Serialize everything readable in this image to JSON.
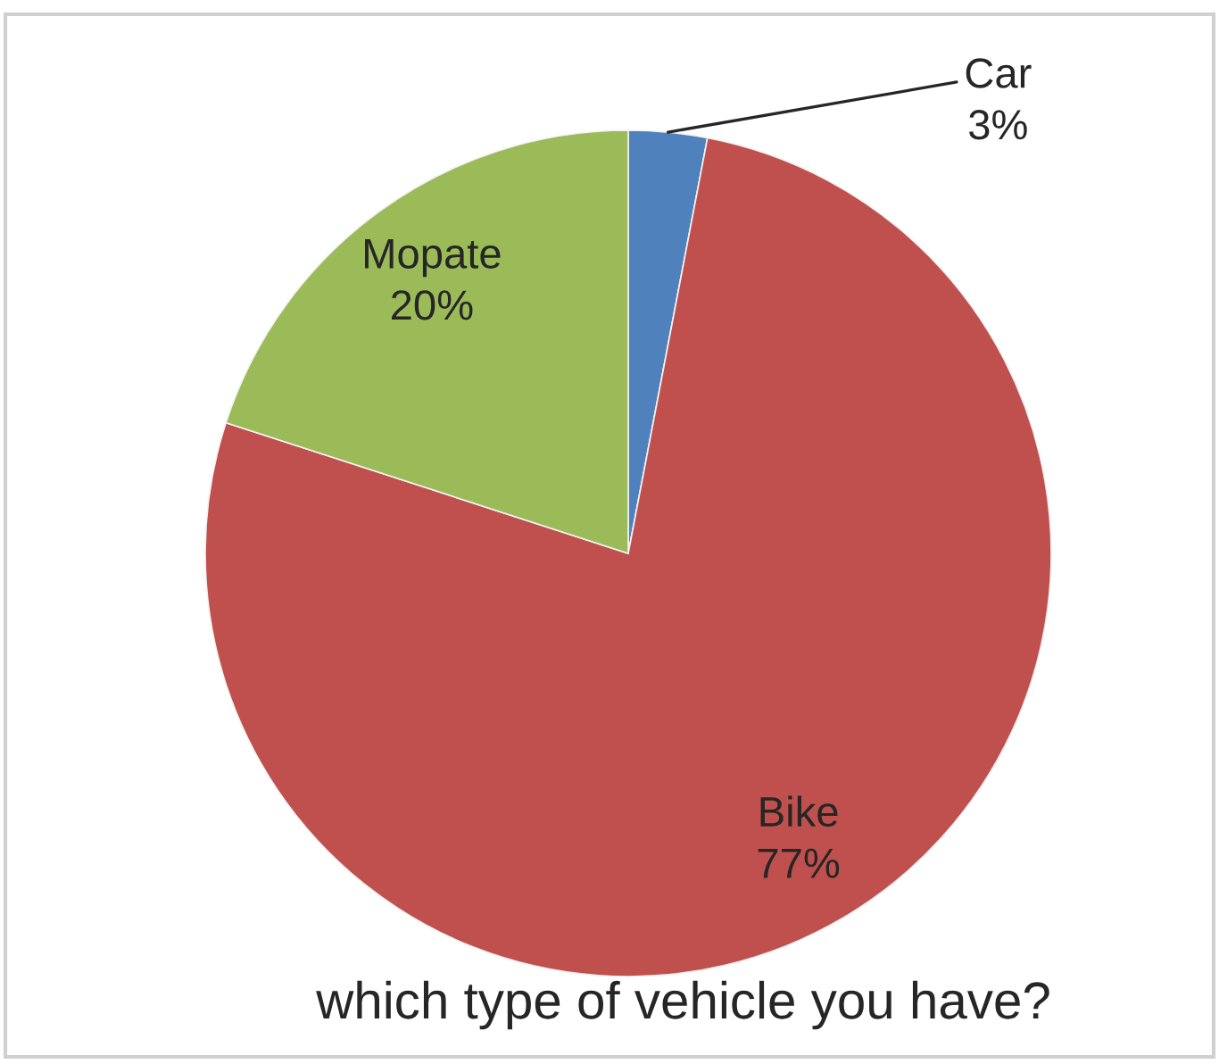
{
  "chart_data": {
    "type": "pie",
    "title": "which type of vehicle you have?",
    "categories": [
      "Car",
      "Bike",
      "Mopate"
    ],
    "values": [
      3,
      77,
      20
    ],
    "colors": [
      "#4f81bd",
      "#c0504d",
      "#9bbb59"
    ],
    "value_labels": [
      "3%",
      "77%",
      "20%"
    ]
  }
}
